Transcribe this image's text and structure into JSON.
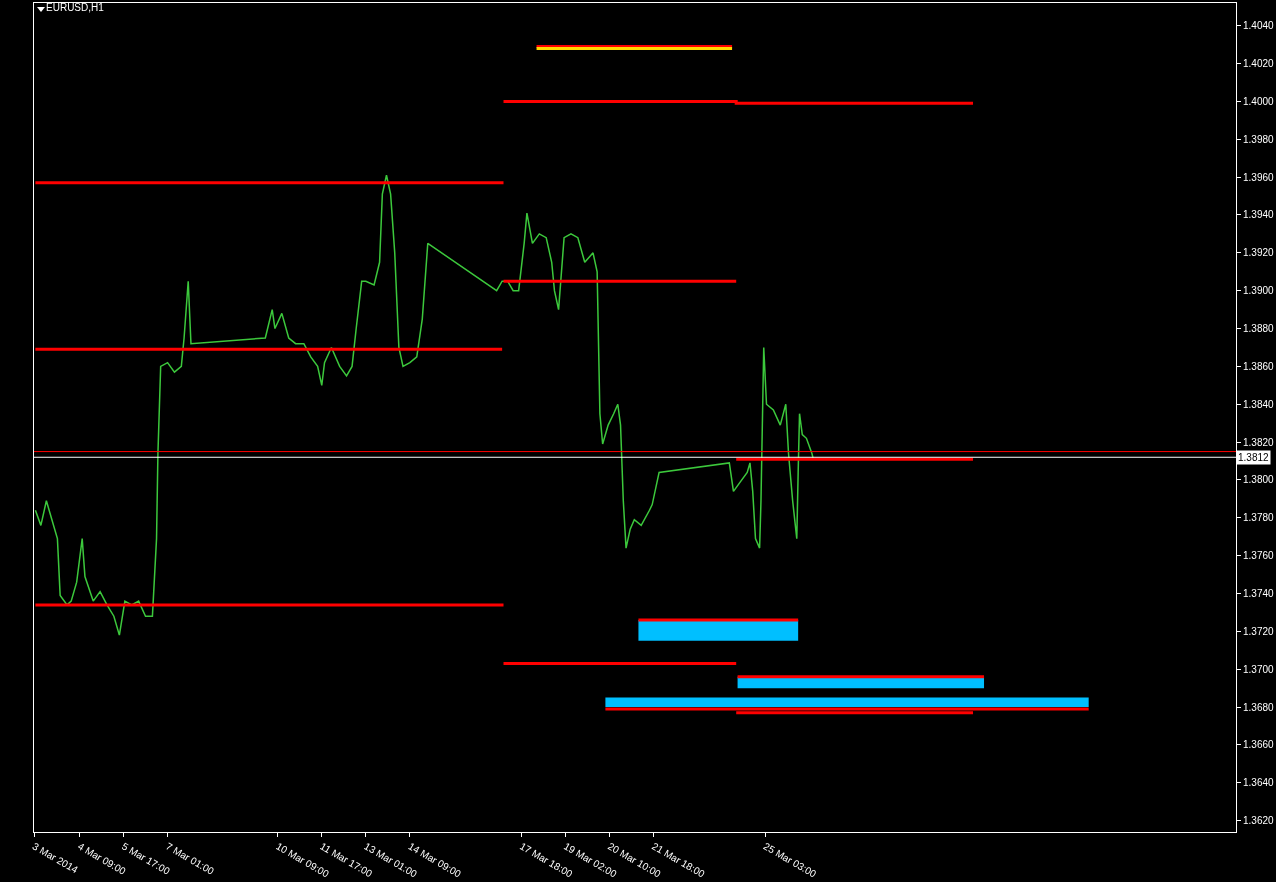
{
  "chart_data": {
    "type": "line",
    "title": "EURUSD,H1",
    "grid": false,
    "xlim": [
      "2014-03-03T00:00",
      "2014-04-08T09:00"
    ],
    "xticks": [
      {
        "value": "2014-03-03T00:00",
        "label": "3 Mar 2014"
      },
      {
        "value": "2014-03-04T09:00",
        "label": "4 Mar 09:00"
      },
      {
        "value": "2014-03-05T17:00",
        "label": "5 Mar 17:00"
      },
      {
        "value": "2014-03-07T01:00",
        "label": "7 Mar 01:00"
      },
      {
        "value": "2014-03-10T09:00",
        "label": "10 Mar 09:00"
      },
      {
        "value": "2014-03-11T17:00",
        "label": "11 Mar 17:00"
      },
      {
        "value": "2014-03-13T01:00",
        "label": "13 Mar 01:00"
      },
      {
        "value": "2014-03-14T09:00",
        "label": "14 Mar 09:00"
      },
      {
        "value": "2014-03-17T18:00",
        "label": "17 Mar 18:00"
      },
      {
        "value": "2014-03-19T02:00",
        "label": "19 Mar 02:00"
      },
      {
        "value": "2014-03-20T10:00",
        "label": "20 Mar 10:00"
      },
      {
        "value": "2014-03-21T18:00",
        "label": "21 Mar 18:00"
      },
      {
        "value": "2014-03-25T03:00",
        "label": "25 Mar 03:00"
      }
    ],
    "ylim": [
      1.3614,
      1.4052
    ],
    "yticks": [
      {
        "value": 1.362,
        "label": "1.3620"
      },
      {
        "value": 1.364,
        "label": "1.3640"
      },
      {
        "value": 1.366,
        "label": "1.3660"
      },
      {
        "value": 1.368,
        "label": "1.3680"
      },
      {
        "value": 1.37,
        "label": "1.3700"
      },
      {
        "value": 1.372,
        "label": "1.3720"
      },
      {
        "value": 1.374,
        "label": "1.3740"
      },
      {
        "value": 1.376,
        "label": "1.3760"
      },
      {
        "value": 1.378,
        "label": "1.3780"
      },
      {
        "value": 1.38,
        "label": "1.3800"
      },
      {
        "value": 1.382,
        "label": "1.3820"
      },
      {
        "value": 1.384,
        "label": "1.3840"
      },
      {
        "value": 1.386,
        "label": "1.3860"
      },
      {
        "value": 1.388,
        "label": "1.3880"
      },
      {
        "value": 1.39,
        "label": "1.3900"
      },
      {
        "value": 1.392,
        "label": "1.3920"
      },
      {
        "value": 1.394,
        "label": "1.3940"
      },
      {
        "value": 1.396,
        "label": "1.3960"
      },
      {
        "value": 1.398,
        "label": "1.3980"
      },
      {
        "value": 1.4,
        "label": "1.4000"
      },
      {
        "value": 1.402,
        "label": "1.4020"
      },
      {
        "value": 1.404,
        "label": "1.4040"
      }
    ],
    "series": [
      {
        "color": "#3cc83c",
        "x": [
          "2014-03-03T01:00",
          "2014-03-03T05:00",
          "2014-03-03T09:00",
          "2014-03-03T13:00",
          "2014-03-03T17:00",
          "2014-03-03T19:00",
          "2014-03-04T00:00",
          "2014-03-04T03:00",
          "2014-03-04T07:00",
          "2014-03-04T11:00",
          "2014-03-04T13:00",
          "2014-03-04T19:00",
          "2014-03-05T00:00",
          "2014-03-05T05:00",
          "2014-03-05T10:00",
          "2014-03-05T14:00",
          "2014-03-05T18:00",
          "2014-03-05T23:00",
          "2014-03-06T04:00",
          "2014-03-06T09:00",
          "2014-03-06T14:00",
          "2014-03-06T17:00",
          "2014-03-06T18:00",
          "2014-03-06T20:00",
          "2014-03-07T01:00",
          "2014-03-07T06:00",
          "2014-03-07T11:00",
          "2014-03-07T13:00",
          "2014-03-07T16:00",
          "2014-03-07T18:00",
          "2014-03-10T00:00",
          "2014-03-10T05:00",
          "2014-03-10T07:00",
          "2014-03-10T12:00",
          "2014-03-10T17:00",
          "2014-03-10T22:00",
          "2014-03-11T04:00",
          "2014-03-11T09:00",
          "2014-03-11T14:00",
          "2014-03-11T17:00",
          "2014-03-11T19:00",
          "2014-03-12T00:00",
          "2014-03-12T06:00",
          "2014-03-12T11:00",
          "2014-03-12T15:00",
          "2014-03-12T18:00",
          "2014-03-12T22:00",
          "2014-03-13T01:00",
          "2014-03-13T07:00",
          "2014-03-13T11:00",
          "2014-03-13T13:00",
          "2014-03-13T16:00",
          "2014-03-13T19:00",
          "2014-03-13T22:00",
          "2014-03-14T01:00",
          "2014-03-14T04:00",
          "2014-03-14T09:00",
          "2014-03-14T14:00",
          "2014-03-14T18:00",
          "2014-03-14T22:00",
          "2014-03-17T00:00",
          "2014-03-17T04:00",
          "2014-03-17T08:00",
          "2014-03-17T12:00",
          "2014-03-17T16:00",
          "2014-03-17T20:00",
          "2014-03-17T22:00",
          "2014-03-18T02:00",
          "2014-03-18T07:00",
          "2014-03-18T12:00",
          "2014-03-18T16:00",
          "2014-03-18T18:00",
          "2014-03-18T21:00",
          "2014-03-19T01:00",
          "2014-03-19T06:00",
          "2014-03-19T11:00",
          "2014-03-19T16:00",
          "2014-03-19T22:00",
          "2014-03-20T01:00",
          "2014-03-20T03:00",
          "2014-03-20T05:00",
          "2014-03-20T09:00",
          "2014-03-20T13:00",
          "2014-03-20T16:00",
          "2014-03-20T18:00",
          "2014-03-20T20:00",
          "2014-03-20T22:00",
          "2014-03-21T01:00",
          "2014-03-21T04:00",
          "2014-03-21T09:00",
          "2014-03-21T15:00",
          "2014-03-21T17:00",
          "2014-03-21T22:00",
          "2014-03-24T01:00",
          "2014-03-24T04:00",
          "2014-03-24T09:00",
          "2014-03-24T14:00",
          "2014-03-24T16:00",
          "2014-03-24T18:00",
          "2014-03-24T20:00",
          "2014-03-24T23:00",
          "2014-03-25T00:00",
          "2014-03-25T02:00",
          "2014-03-25T04:00",
          "2014-03-25T09:00",
          "2014-03-25T14:00",
          "2014-03-25T18:00",
          "2014-03-25T20:00",
          "2014-03-25T23:00",
          "2014-03-26T02:00",
          "2014-03-26T03:00",
          "2014-03-26T04:00",
          "2014-03-26T06:00",
          "2014-03-26T09:00",
          "2014-03-26T13:00",
          "2014-03-26T14:00"
        ],
        "values": [
          1.3784,
          1.3776,
          1.3789,
          1.3779,
          1.3769,
          1.3739,
          1.3734,
          1.3736,
          1.3746,
          1.3769,
          1.3749,
          1.3736,
          1.3741,
          1.3734,
          1.3728,
          1.3718,
          1.3736,
          1.3734,
          1.3736,
          1.3728,
          1.3728,
          1.3769,
          1.3814,
          1.386,
          1.3862,
          1.3857,
          1.386,
          1.3875,
          1.3905,
          1.3872,
          1.3875,
          1.389,
          1.388,
          1.3888,
          1.3875,
          1.3872,
          1.3872,
          1.3865,
          1.386,
          1.385,
          1.3862,
          1.387,
          1.386,
          1.3855,
          1.386,
          1.388,
          1.3905,
          1.3905,
          1.3903,
          1.3915,
          1.3951,
          1.3961,
          1.3951,
          1.392,
          1.387,
          1.386,
          1.3862,
          1.3865,
          1.3885,
          1.3925,
          1.39,
          1.3905,
          1.3905,
          1.39,
          1.39,
          1.3925,
          1.3941,
          1.3925,
          1.393,
          1.3928,
          1.3915,
          1.39,
          1.389,
          1.3928,
          1.393,
          1.3928,
          1.3915,
          1.392,
          1.391,
          1.3835,
          1.3819,
          1.3829,
          1.3835,
          1.384,
          1.3829,
          1.3789,
          1.3764,
          1.3774,
          1.3779,
          1.3776,
          1.3784,
          1.3787,
          1.3804,
          1.3809,
          1.3794,
          1.3799,
          1.3804,
          1.3809,
          1.3794,
          1.3769,
          1.3764,
          1.3789,
          1.387,
          1.384,
          1.3837,
          1.3829,
          1.384,
          1.3814,
          1.3789,
          1.3769,
          1.3804,
          1.3835,
          1.3824,
          1.3822,
          1.3814,
          1.3811
        ]
      },
      {
        "type": "line",
        "color": "#ff0000",
        "x": [
          "2014-03-18T05:00",
          "2014-03-24T03:00"
        ],
        "values": [
          1.4029,
          1.4029
        ]
      },
      {
        "type": "line",
        "color": "#ffd700",
        "x": [
          "2014-03-18T05:00",
          "2014-03-24T03:00"
        ],
        "values": [
          1.4028,
          1.4028
        ]
      },
      {
        "type": "line",
        "color": "#ff0000",
        "x": [
          "2014-03-17T05:00",
          "2014-03-24T06:00",
          "2014-03-24T06:00",
          "2014-03-31T10:00"
        ],
        "values": [
          1.4,
          1.4,
          1.3999,
          1.3999
        ]
      },
      {
        "type": "line",
        "color": "#ff0000",
        "x": [
          "2014-03-03T01:00",
          "2014-03-17T05:00"
        ],
        "values": [
          1.3957,
          1.3957
        ]
      },
      {
        "type": "line",
        "color": "#ff0000",
        "x": [
          "2014-03-17T05:00",
          "2014-03-24T06:00"
        ],
        "values": [
          1.3905,
          1.3905
        ]
      },
      {
        "type": "line",
        "color": "#ff0000",
        "x": [
          "2014-03-03T01:00",
          "2014-03-17T04:00"
        ],
        "values": [
          1.3869,
          1.3869
        ]
      },
      {
        "type": "line",
        "color": "#ff0000",
        "x": [
          "2014-03-24T06:00",
          "2014-03-31T10:00"
        ],
        "values": [
          1.3811,
          1.3811
        ]
      },
      {
        "type": "line",
        "color": "#ff0000",
        "x": [
          "2014-03-03T01:00",
          "2014-03-17T05:00"
        ],
        "values": [
          1.3734,
          1.3734
        ]
      },
      {
        "type": "line",
        "color": "#ff0000",
        "x": [
          "2014-03-17T05:00",
          "2014-03-24T06:00"
        ],
        "values": [
          1.3703,
          1.3703
        ]
      },
      {
        "type": "line",
        "color": "#00bfff",
        "x": [
          "2014-03-21T07:00",
          "2014-03-26T03:00"
        ],
        "values": [
          null,
          null
        ],
        "lower": [
          1.3715,
          1.3715
        ],
        "upper": [
          1.3726,
          1.3726
        ]
      },
      {
        "type": "line",
        "color": "#00bfff",
        "x": [
          "2014-03-24T07:00",
          "2014-03-31T18:00"
        ],
        "values": [
          null,
          null
        ],
        "lower": [
          1.369,
          1.369
        ],
        "upper": [
          1.3696,
          1.3696
        ]
      },
      {
        "type": "line",
        "color": "#00bfff",
        "x": [
          "2014-03-20T07:00",
          "2014-04-03T22:00"
        ],
        "values": [
          null,
          null
        ],
        "lower": [
          1.368,
          1.368
        ],
        "upper": [
          1.3685,
          1.3685
        ]
      },
      {
        "type": "line",
        "color": "#ff0000",
        "x": [
          "2014-03-21T07:00",
          "2014-03-26T03:00"
        ],
        "values": [
          1.3726,
          1.3726
        ]
      },
      {
        "type": "line",
        "color": "#ff0000",
        "x": [
          "2014-03-24T07:00",
          "2014-03-31T18:00"
        ],
        "values": [
          1.3696,
          1.3696
        ]
      },
      {
        "type": "line",
        "color": "#ff0000",
        "x": [
          "2014-03-20T07:00",
          "2014-04-03T22:00"
        ],
        "values": [
          1.3679,
          1.3679
        ]
      },
      {
        "type": "line",
        "color": "#ff0000",
        "x": [
          "2014-03-24T06:00",
          "2014-03-31T10:00"
        ],
        "values": [
          1.3677,
          1.3677
        ]
      }
    ],
    "ref_lines": [
      {
        "axis": "y",
        "value": 1.3815,
        "color": "#ff0000"
      },
      {
        "axis": "y",
        "value": 1.3812,
        "label": "1.3812",
        "color": "#ffffff"
      }
    ]
  }
}
